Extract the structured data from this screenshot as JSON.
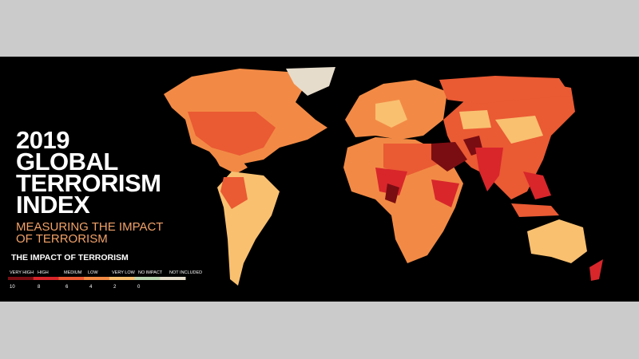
{
  "title_lines": [
    "2019",
    "GLOBAL",
    "TERRORISM",
    "INDEX"
  ],
  "subtitle_lines": [
    "MEASURING THE IMPACT",
    "OF TERRORISM"
  ],
  "legend": {
    "title": "THE IMPACT OF TERRORISM",
    "items": [
      {
        "label": "VERY HIGH",
        "color": "#7a0d12"
      },
      {
        "label": "HIGH",
        "color": "#d8262b"
      },
      {
        "label": "MEDIUM",
        "color": "#ea5a33"
      },
      {
        "label": "LOW",
        "color": "#f28a45"
      },
      {
        "label": "VERY LOW",
        "color": "#f9c070"
      },
      {
        "label": "NO IMPACT",
        "color": "#b9d6b0"
      },
      {
        "label": "NOT INCLUDED",
        "color": "#e6dccb"
      }
    ],
    "scale": [
      10,
      8,
      6,
      4,
      2,
      0
    ]
  }
}
